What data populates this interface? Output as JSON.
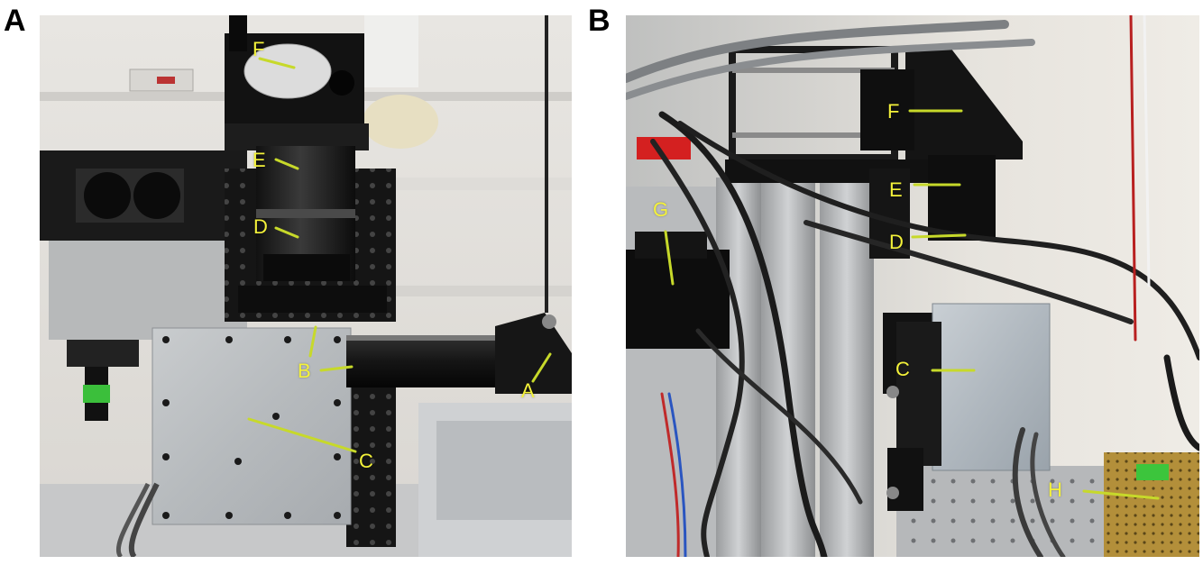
{
  "panels": [
    {
      "letter": "A",
      "labels": [
        "A",
        "B",
        "C",
        "D",
        "E",
        "F"
      ]
    },
    {
      "letter": "B",
      "labels": [
        "C",
        "D",
        "E",
        "F",
        "G",
        "H"
      ]
    }
  ],
  "colors": {
    "label_yellow": "#f4f23a",
    "leader_green": "#c7d92a"
  }
}
